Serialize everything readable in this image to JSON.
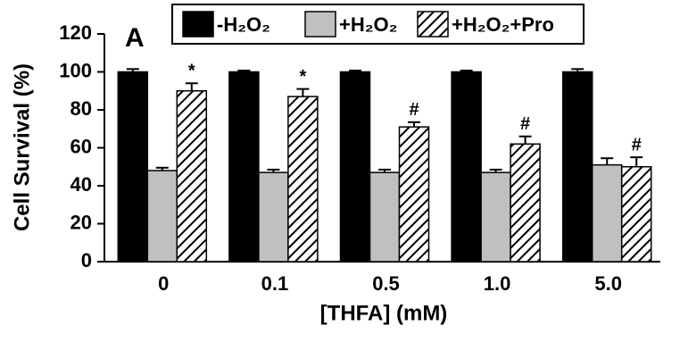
{
  "chart_data": {
    "type": "bar",
    "panel_label": "A",
    "xlabel": "[THFA] (mM)",
    "ylabel": "Cell Survival (%)",
    "categories": [
      "0",
      "0.1",
      "0.5",
      "1.0",
      "5.0"
    ],
    "series": [
      {
        "name": "-H₂O₂",
        "color": "#000000",
        "hatch": false,
        "values": [
          100,
          100,
          100,
          100,
          100
        ],
        "errors": [
          1.5,
          0.7,
          0.7,
          0.7,
          1.5
        ]
      },
      {
        "name": "+H₂O₂",
        "color": "#c0c0c0",
        "hatch": false,
        "values": [
          48,
          47,
          47,
          47,
          51
        ],
        "errors": [
          1.5,
          1.5,
          1.5,
          1.5,
          3.5
        ]
      },
      {
        "name": "+H₂O₂+Pro",
        "color": "#000000",
        "hatch": true,
        "values": [
          90,
          87,
          71,
          62,
          50
        ],
        "errors": [
          4,
          4,
          2.5,
          4,
          5
        ],
        "annotations": [
          "*",
          "*",
          "#",
          "#",
          "#"
        ]
      }
    ],
    "ylim": [
      0,
      120
    ],
    "yticks": [
      0,
      20,
      40,
      60,
      80,
      100,
      120
    ]
  }
}
